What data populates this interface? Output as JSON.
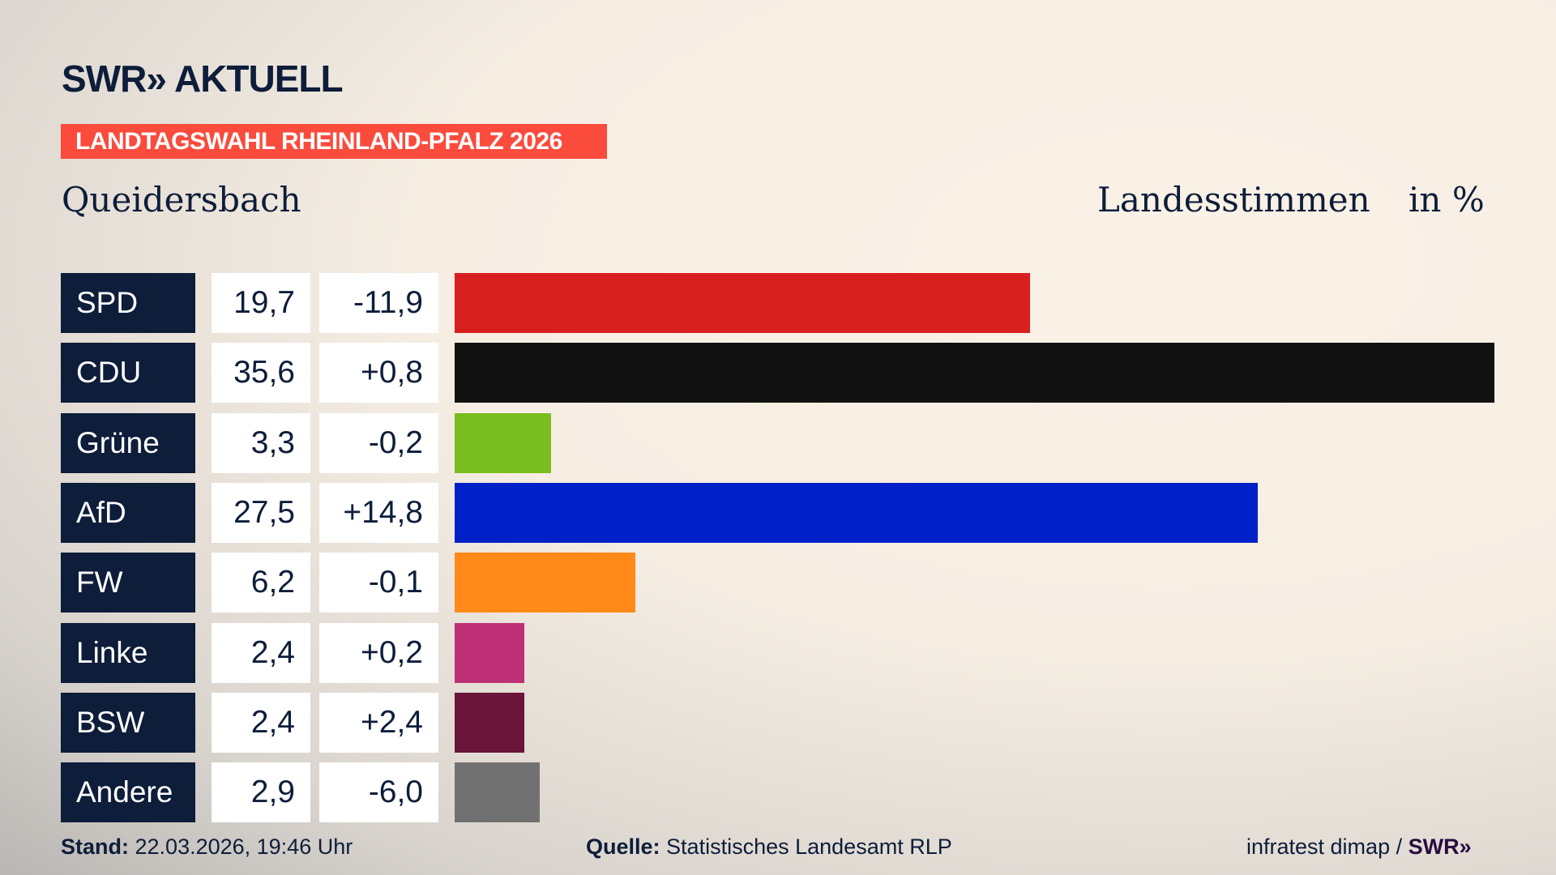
{
  "header": {
    "logo": "SWR» AKTUELL",
    "banner": "LANDTAGSWAHL RHEINLAND-PFALZ 2026",
    "place": "Queidersbach",
    "measure": "Landesstimmen",
    "unit": "in %"
  },
  "chart_data": {
    "type": "bar",
    "orientation": "horizontal",
    "title": "Queidersbach – Landesstimmen in %",
    "categories": [
      "SPD",
      "CDU",
      "Grüne",
      "AfD",
      "FW",
      "Linke",
      "BSW",
      "Andere"
    ],
    "values": [
      19.7,
      35.6,
      3.3,
      27.5,
      6.2,
      2.4,
      2.4,
      2.9
    ],
    "value_labels": [
      "19,7",
      "35,6",
      "3,3",
      "27,5",
      "6,2",
      "2,4",
      "2,4",
      "2,9"
    ],
    "diff_labels": [
      "-11,9",
      "+0,8",
      "-0,2",
      "+14,8",
      "-0,1",
      "+0,2",
      "+2,4",
      "-6,0"
    ],
    "colors": [
      "#d81f1f",
      "#121212",
      "#78be1e",
      "#0021c8",
      "#ff8a19",
      "#be3075",
      "#6a1539",
      "#717171"
    ],
    "xlim": [
      0,
      35.6
    ]
  },
  "footer": {
    "stand_label": "Stand:",
    "stand_value": "22.03.2026, 19:46 Uhr",
    "source_label": "Quelle:",
    "source_value": "Statistisches Landesamt RLP",
    "credit": "infratest dimap /",
    "credit_logo": "SWR»"
  }
}
